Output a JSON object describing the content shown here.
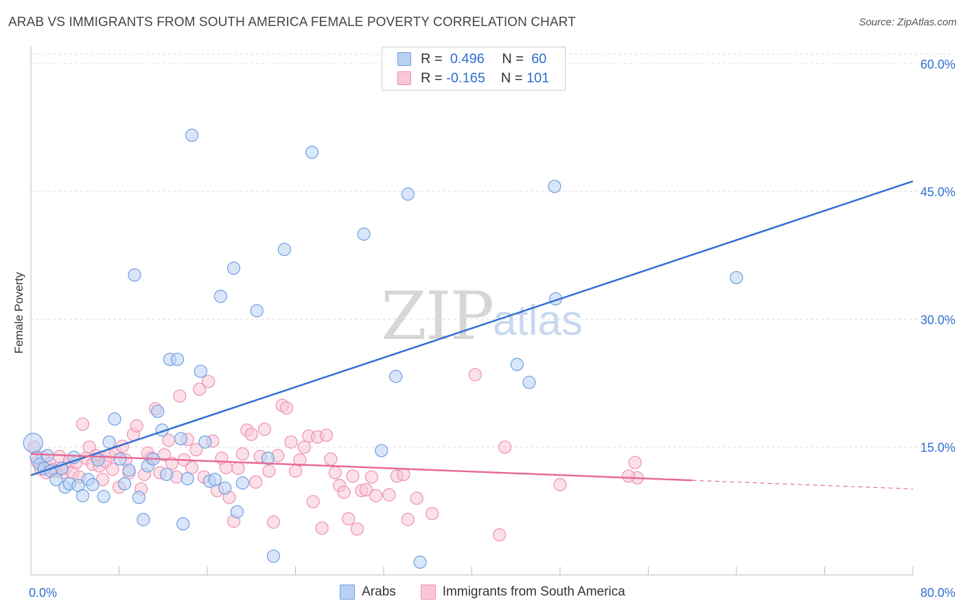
{
  "header": {
    "title": "ARAB VS IMMIGRANTS FROM SOUTH AMERICA FEMALE POVERTY CORRELATION CHART",
    "source": "Source: ZipAtlas.com"
  },
  "watermark": {
    "zip": "ZIP",
    "atlas": "atlas"
  },
  "legend": {
    "rows": [
      {
        "r_label": "R =",
        "r_value": "0.496",
        "n_label": "N =",
        "n_value": "60"
      },
      {
        "r_label": "R =",
        "r_value": "-0.165",
        "n_label": "N =",
        "n_value": "101"
      }
    ]
  },
  "colors": {
    "arabs_fill": "#b8d1f2",
    "arabs_stroke": "#6f9ee0",
    "arabs_line": "#2f6fd0",
    "imm_fill": "#f8c6d6",
    "imm_stroke": "#ee8fb0",
    "imm_line": "#e76a96",
    "grid": "#dddddd",
    "axis_text": "#2f6fd0"
  },
  "chart_data": {
    "type": "scatter",
    "title": "ARAB VS IMMIGRANTS FROM SOUTH AMERICA FEMALE POVERTY CORRELATION CHART",
    "xlabel": "",
    "ylabel": "Female Poverty",
    "xlim": [
      0,
      80
    ],
    "ylim": [
      0,
      62
    ],
    "x_tick_labels": [
      "0.0%",
      "80.0%"
    ],
    "y_ticks": [
      15,
      30,
      45,
      60
    ],
    "y_tick_labels": [
      "15.0%",
      "30.0%",
      "45.0%",
      "60.0%"
    ],
    "grid": true,
    "series": [
      {
        "name": "Arabs",
        "R": 0.496,
        "N": 60,
        "trend": {
          "x": [
            0,
            80
          ],
          "y": [
            11.7,
            46.2
          ],
          "dashed_from": null
        },
        "points": [
          [
            0.2,
            15.5
          ],
          [
            0.5,
            13.8
          ],
          [
            0.8,
            13.0
          ],
          [
            1.2,
            12.5
          ],
          [
            1.5,
            14.0
          ],
          [
            1.8,
            12.2
          ],
          [
            2.3,
            11.2
          ],
          [
            2.8,
            12.5
          ],
          [
            3.1,
            10.3
          ],
          [
            3.5,
            10.7
          ],
          [
            3.9,
            13.8
          ],
          [
            4.3,
            10.5
          ],
          [
            4.7,
            9.3
          ],
          [
            5.2,
            11.2
          ],
          [
            5.6,
            10.6
          ],
          [
            6.1,
            13.5
          ],
          [
            6.6,
            9.2
          ],
          [
            7.1,
            15.6
          ],
          [
            7.6,
            18.3
          ],
          [
            8.1,
            13.6
          ],
          [
            8.5,
            10.7
          ],
          [
            8.9,
            12.3
          ],
          [
            9.4,
            35.2
          ],
          [
            9.8,
            9.1
          ],
          [
            10.2,
            6.5
          ],
          [
            10.6,
            12.8
          ],
          [
            11.1,
            13.6
          ],
          [
            11.5,
            19.2
          ],
          [
            11.9,
            17.0
          ],
          [
            12.3,
            11.8
          ],
          [
            12.6,
            25.3
          ],
          [
            13.3,
            25.3
          ],
          [
            13.8,
            6.0
          ],
          [
            13.6,
            16.0
          ],
          [
            14.2,
            11.3
          ],
          [
            14.6,
            51.6
          ],
          [
            15.4,
            23.9
          ],
          [
            15.8,
            15.6
          ],
          [
            16.2,
            11.0
          ],
          [
            16.7,
            11.2
          ],
          [
            17.2,
            32.7
          ],
          [
            17.6,
            10.2
          ],
          [
            18.4,
            36.0
          ],
          [
            18.7,
            7.4
          ],
          [
            19.2,
            10.8
          ],
          [
            20.5,
            31.0
          ],
          [
            21.5,
            13.7
          ],
          [
            22.0,
            2.2
          ],
          [
            23.0,
            38.2
          ],
          [
            25.5,
            49.6
          ],
          [
            30.2,
            40.0
          ],
          [
            31.8,
            14.6
          ],
          [
            33.1,
            23.3
          ],
          [
            34.2,
            44.7
          ],
          [
            35.3,
            1.5
          ],
          [
            44.1,
            24.7
          ],
          [
            45.2,
            22.6
          ],
          [
            47.5,
            45.6
          ],
          [
            47.6,
            32.4
          ],
          [
            64.0,
            34.9
          ]
        ]
      },
      {
        "name": "Immigrants from South America",
        "R": -0.165,
        "N": 101,
        "trend": {
          "x": [
            0,
            60,
            80
          ],
          "y": [
            14.2,
            11.1,
            10.1
          ],
          "dashed_from": 60
        },
        "points": [
          [
            0.3,
            15.0
          ],
          [
            0.6,
            13.3
          ],
          [
            0.9,
            12.4
          ],
          [
            1.1,
            13.8
          ],
          [
            1.4,
            12.0
          ],
          [
            1.7,
            13.1
          ],
          [
            2.0,
            12.4
          ],
          [
            2.3,
            12.2
          ],
          [
            2.6,
            13.9
          ],
          [
            2.9,
            12.0
          ],
          [
            3.2,
            12.6
          ],
          [
            3.5,
            13.4
          ],
          [
            3.8,
            12.0
          ],
          [
            4.1,
            13.2
          ],
          [
            4.4,
            11.5
          ],
          [
            4.7,
            17.7
          ],
          [
            5.0,
            13.7
          ],
          [
            5.3,
            15.0
          ],
          [
            5.6,
            13.0
          ],
          [
            5.9,
            14.0
          ],
          [
            6.2,
            12.8
          ],
          [
            6.5,
            11.2
          ],
          [
            6.8,
            13.3
          ],
          [
            7.1,
            14.0
          ],
          [
            7.4,
            12.4
          ],
          [
            7.7,
            14.4
          ],
          [
            8.0,
            10.3
          ],
          [
            8.3,
            15.1
          ],
          [
            8.6,
            13.5
          ],
          [
            8.9,
            12.0
          ],
          [
            9.3,
            16.5
          ],
          [
            9.6,
            17.5
          ],
          [
            10.0,
            10.1
          ],
          [
            10.3,
            11.8
          ],
          [
            10.6,
            14.3
          ],
          [
            10.9,
            13.7
          ],
          [
            11.3,
            19.5
          ],
          [
            11.7,
            12.0
          ],
          [
            12.1,
            14.1
          ],
          [
            12.5,
            15.8
          ],
          [
            12.8,
            13.1
          ],
          [
            13.2,
            11.5
          ],
          [
            13.5,
            21.0
          ],
          [
            13.9,
            13.5
          ],
          [
            14.2,
            15.9
          ],
          [
            14.6,
            12.6
          ],
          [
            15.0,
            14.7
          ],
          [
            15.3,
            21.8
          ],
          [
            15.7,
            11.5
          ],
          [
            16.1,
            22.7
          ],
          [
            16.5,
            15.7
          ],
          [
            16.9,
            9.9
          ],
          [
            17.3,
            13.7
          ],
          [
            17.7,
            12.6
          ],
          [
            18.0,
            9.1
          ],
          [
            18.4,
            6.3
          ],
          [
            18.8,
            12.5
          ],
          [
            19.2,
            14.2
          ],
          [
            19.6,
            17.0
          ],
          [
            20.0,
            16.5
          ],
          [
            20.4,
            10.9
          ],
          [
            20.8,
            13.9
          ],
          [
            21.2,
            17.1
          ],
          [
            21.6,
            12.2
          ],
          [
            22.0,
            6.2
          ],
          [
            22.4,
            14.0
          ],
          [
            22.8,
            19.9
          ],
          [
            23.2,
            19.6
          ],
          [
            23.6,
            15.6
          ],
          [
            24.0,
            12.2
          ],
          [
            24.4,
            13.5
          ],
          [
            24.8,
            15.0
          ],
          [
            25.2,
            16.3
          ],
          [
            25.6,
            8.6
          ],
          [
            26.0,
            16.2
          ],
          [
            26.4,
            5.5
          ],
          [
            26.8,
            16.4
          ],
          [
            27.2,
            13.6
          ],
          [
            27.6,
            12.0
          ],
          [
            28.0,
            10.5
          ],
          [
            28.4,
            9.7
          ],
          [
            28.8,
            6.6
          ],
          [
            29.2,
            11.6
          ],
          [
            29.6,
            5.4
          ],
          [
            30.0,
            9.9
          ],
          [
            30.4,
            10.0
          ],
          [
            30.9,
            11.5
          ],
          [
            31.3,
            9.3
          ],
          [
            32.5,
            9.4
          ],
          [
            33.2,
            11.6
          ],
          [
            33.8,
            11.8
          ],
          [
            34.2,
            6.5
          ],
          [
            35.0,
            9.0
          ],
          [
            36.4,
            7.2
          ],
          [
            40.3,
            23.5
          ],
          [
            42.5,
            4.7
          ],
          [
            43.0,
            15.0
          ],
          [
            48.0,
            10.6
          ],
          [
            55.0,
            11.4
          ],
          [
            54.2,
            11.6
          ],
          [
            54.8,
            13.2
          ]
        ]
      }
    ]
  }
}
